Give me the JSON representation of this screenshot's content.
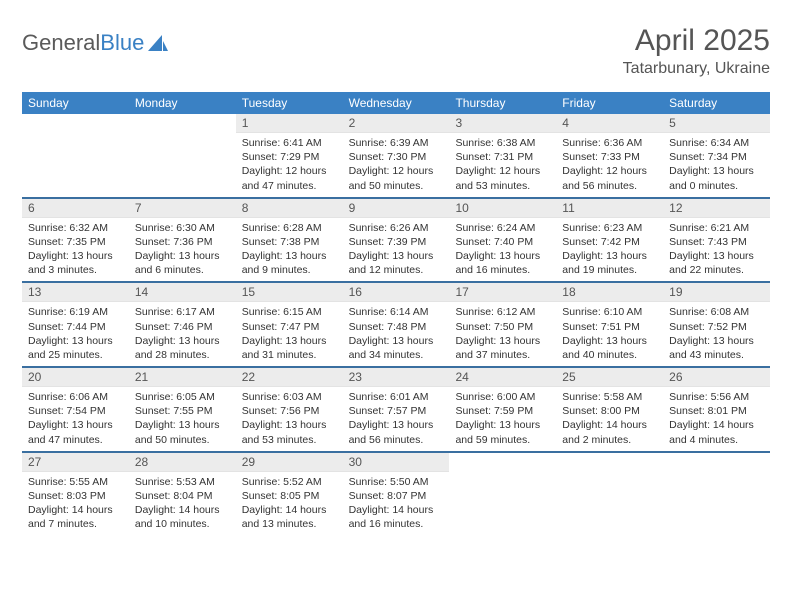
{
  "logo": {
    "text_a": "General",
    "text_b": "Blue"
  },
  "title": "April 2025",
  "location": "Tatarbunary, Ukraine",
  "header_bg": "#3a81c4",
  "separator_color": "#3a6fa0",
  "daynum_bg": "#ececec",
  "text_color": "#333333",
  "days_of_week": [
    "Sunday",
    "Monday",
    "Tuesday",
    "Wednesday",
    "Thursday",
    "Friday",
    "Saturday"
  ],
  "weeks": [
    [
      {
        "n": "",
        "sr": "",
        "ss": "",
        "dl": ""
      },
      {
        "n": "",
        "sr": "",
        "ss": "",
        "dl": ""
      },
      {
        "n": "1",
        "sr": "Sunrise: 6:41 AM",
        "ss": "Sunset: 7:29 PM",
        "dl": "Daylight: 12 hours and 47 minutes."
      },
      {
        "n": "2",
        "sr": "Sunrise: 6:39 AM",
        "ss": "Sunset: 7:30 PM",
        "dl": "Daylight: 12 hours and 50 minutes."
      },
      {
        "n": "3",
        "sr": "Sunrise: 6:38 AM",
        "ss": "Sunset: 7:31 PM",
        "dl": "Daylight: 12 hours and 53 minutes."
      },
      {
        "n": "4",
        "sr": "Sunrise: 6:36 AM",
        "ss": "Sunset: 7:33 PM",
        "dl": "Daylight: 12 hours and 56 minutes."
      },
      {
        "n": "5",
        "sr": "Sunrise: 6:34 AM",
        "ss": "Sunset: 7:34 PM",
        "dl": "Daylight: 13 hours and 0 minutes."
      }
    ],
    [
      {
        "n": "6",
        "sr": "Sunrise: 6:32 AM",
        "ss": "Sunset: 7:35 PM",
        "dl": "Daylight: 13 hours and 3 minutes."
      },
      {
        "n": "7",
        "sr": "Sunrise: 6:30 AM",
        "ss": "Sunset: 7:36 PM",
        "dl": "Daylight: 13 hours and 6 minutes."
      },
      {
        "n": "8",
        "sr": "Sunrise: 6:28 AM",
        "ss": "Sunset: 7:38 PM",
        "dl": "Daylight: 13 hours and 9 minutes."
      },
      {
        "n": "9",
        "sr": "Sunrise: 6:26 AM",
        "ss": "Sunset: 7:39 PM",
        "dl": "Daylight: 13 hours and 12 minutes."
      },
      {
        "n": "10",
        "sr": "Sunrise: 6:24 AM",
        "ss": "Sunset: 7:40 PM",
        "dl": "Daylight: 13 hours and 16 minutes."
      },
      {
        "n": "11",
        "sr": "Sunrise: 6:23 AM",
        "ss": "Sunset: 7:42 PM",
        "dl": "Daylight: 13 hours and 19 minutes."
      },
      {
        "n": "12",
        "sr": "Sunrise: 6:21 AM",
        "ss": "Sunset: 7:43 PM",
        "dl": "Daylight: 13 hours and 22 minutes."
      }
    ],
    [
      {
        "n": "13",
        "sr": "Sunrise: 6:19 AM",
        "ss": "Sunset: 7:44 PM",
        "dl": "Daylight: 13 hours and 25 minutes."
      },
      {
        "n": "14",
        "sr": "Sunrise: 6:17 AM",
        "ss": "Sunset: 7:46 PM",
        "dl": "Daylight: 13 hours and 28 minutes."
      },
      {
        "n": "15",
        "sr": "Sunrise: 6:15 AM",
        "ss": "Sunset: 7:47 PM",
        "dl": "Daylight: 13 hours and 31 minutes."
      },
      {
        "n": "16",
        "sr": "Sunrise: 6:14 AM",
        "ss": "Sunset: 7:48 PM",
        "dl": "Daylight: 13 hours and 34 minutes."
      },
      {
        "n": "17",
        "sr": "Sunrise: 6:12 AM",
        "ss": "Sunset: 7:50 PM",
        "dl": "Daylight: 13 hours and 37 minutes."
      },
      {
        "n": "18",
        "sr": "Sunrise: 6:10 AM",
        "ss": "Sunset: 7:51 PM",
        "dl": "Daylight: 13 hours and 40 minutes."
      },
      {
        "n": "19",
        "sr": "Sunrise: 6:08 AM",
        "ss": "Sunset: 7:52 PM",
        "dl": "Daylight: 13 hours and 43 minutes."
      }
    ],
    [
      {
        "n": "20",
        "sr": "Sunrise: 6:06 AM",
        "ss": "Sunset: 7:54 PM",
        "dl": "Daylight: 13 hours and 47 minutes."
      },
      {
        "n": "21",
        "sr": "Sunrise: 6:05 AM",
        "ss": "Sunset: 7:55 PM",
        "dl": "Daylight: 13 hours and 50 minutes."
      },
      {
        "n": "22",
        "sr": "Sunrise: 6:03 AM",
        "ss": "Sunset: 7:56 PM",
        "dl": "Daylight: 13 hours and 53 minutes."
      },
      {
        "n": "23",
        "sr": "Sunrise: 6:01 AM",
        "ss": "Sunset: 7:57 PM",
        "dl": "Daylight: 13 hours and 56 minutes."
      },
      {
        "n": "24",
        "sr": "Sunrise: 6:00 AM",
        "ss": "Sunset: 7:59 PM",
        "dl": "Daylight: 13 hours and 59 minutes."
      },
      {
        "n": "25",
        "sr": "Sunrise: 5:58 AM",
        "ss": "Sunset: 8:00 PM",
        "dl": "Daylight: 14 hours and 2 minutes."
      },
      {
        "n": "26",
        "sr": "Sunrise: 5:56 AM",
        "ss": "Sunset: 8:01 PM",
        "dl": "Daylight: 14 hours and 4 minutes."
      }
    ],
    [
      {
        "n": "27",
        "sr": "Sunrise: 5:55 AM",
        "ss": "Sunset: 8:03 PM",
        "dl": "Daylight: 14 hours and 7 minutes."
      },
      {
        "n": "28",
        "sr": "Sunrise: 5:53 AM",
        "ss": "Sunset: 8:04 PM",
        "dl": "Daylight: 14 hours and 10 minutes."
      },
      {
        "n": "29",
        "sr": "Sunrise: 5:52 AM",
        "ss": "Sunset: 8:05 PM",
        "dl": "Daylight: 14 hours and 13 minutes."
      },
      {
        "n": "30",
        "sr": "Sunrise: 5:50 AM",
        "ss": "Sunset: 8:07 PM",
        "dl": "Daylight: 14 hours and 16 minutes."
      },
      {
        "n": "",
        "sr": "",
        "ss": "",
        "dl": ""
      },
      {
        "n": "",
        "sr": "",
        "ss": "",
        "dl": ""
      },
      {
        "n": "",
        "sr": "",
        "ss": "",
        "dl": ""
      }
    ]
  ]
}
